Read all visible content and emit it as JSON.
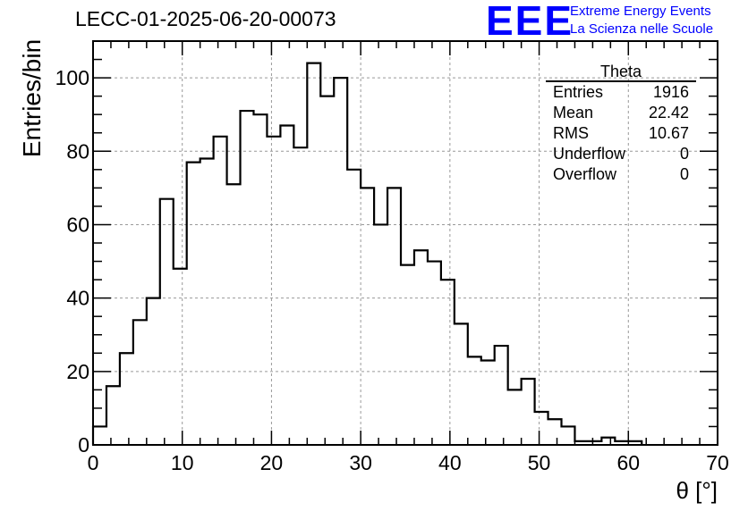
{
  "header": {
    "run_title": "LECC-01-2025-06-20-00073",
    "logo_letters": "EEE",
    "logo_line1": "Extreme Energy Events",
    "logo_line2": "La Scienza nelle Scuole"
  },
  "stats": {
    "title": "Theta",
    "rows": [
      {
        "label": "Entries",
        "value": "1916"
      },
      {
        "label": "Mean",
        "value": "22.42"
      },
      {
        "label": "RMS",
        "value": "10.67"
      },
      {
        "label": "Underflow",
        "value": "0"
      },
      {
        "label": "Overflow",
        "value": "0"
      }
    ]
  },
  "chart_data": {
    "type": "bar",
    "histogram": true,
    "title": "LECC-01-2025-06-20-00073",
    "xlabel": "θ [°]",
    "ylabel": "Entries/bin",
    "xlim": [
      0,
      70
    ],
    "ylim": [
      0,
      110
    ],
    "bin_edges_start": 0,
    "bin_width": 1.5,
    "values": [
      5,
      16,
      25,
      34,
      40,
      67,
      48,
      77,
      78,
      84,
      71,
      91,
      90,
      84,
      87,
      81,
      104,
      95,
      100,
      75,
      70,
      60,
      70,
      49,
      53,
      50,
      45,
      33,
      24,
      23,
      27,
      15,
      18,
      9,
      7,
      5,
      1,
      1,
      2,
      1,
      1
    ],
    "x_ticks": [
      0,
      10,
      20,
      30,
      40,
      50,
      60,
      70
    ],
    "y_ticks": [
      0,
      20,
      40,
      60,
      80,
      100
    ],
    "grid": true,
    "line_color": "#000000",
    "legend": "stats box top-right"
  }
}
